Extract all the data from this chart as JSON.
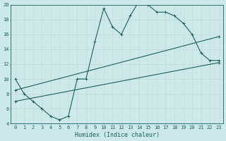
{
  "xlabel": "Humidex (Indice chaleur)",
  "ylabel": "",
  "bg_color": "#cce8e8",
  "grid_color": "#aed4d4",
  "line_color": "#1a6060",
  "xlim": [
    -0.5,
    23.5
  ],
  "ylim": [
    4,
    20
  ],
  "xticks": [
    0,
    1,
    2,
    3,
    4,
    5,
    6,
    7,
    8,
    9,
    10,
    11,
    12,
    13,
    14,
    15,
    16,
    17,
    18,
    19,
    20,
    21,
    22,
    23
  ],
  "yticks": [
    4,
    6,
    8,
    10,
    12,
    14,
    16,
    18,
    20
  ],
  "curve1_x": [
    0,
    1,
    2,
    3,
    4,
    5,
    6,
    7,
    8,
    9,
    10,
    11,
    12,
    13,
    14,
    15,
    16,
    17,
    18,
    19,
    20,
    21,
    22,
    23
  ],
  "curve1_y": [
    10,
    8,
    7,
    6,
    5,
    4.5,
    5,
    10,
    10,
    15,
    19.5,
    17,
    16,
    18.5,
    20.5,
    20,
    19,
    19,
    18.5,
    17.5,
    16,
    13.5,
    12.5,
    12.5
  ],
  "curve2_x": [
    0,
    23
  ],
  "curve2_y": [
    7.0,
    12.2
  ],
  "curve3_x": [
    0,
    23
  ],
  "curve3_y": [
    8.5,
    15.7
  ]
}
